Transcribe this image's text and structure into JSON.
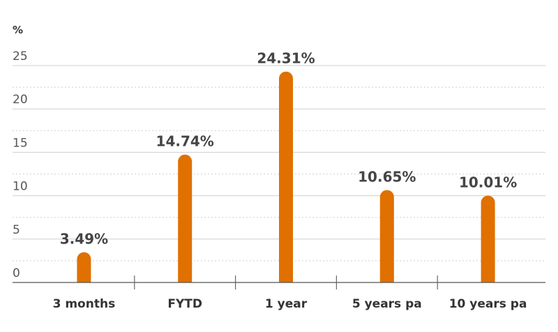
{
  "chart_data": {
    "type": "bar",
    "unit_label": "%",
    "categories": [
      "3 months",
      "FYTD",
      "1 year",
      "5 years pa",
      "10 years pa"
    ],
    "values": [
      3.49,
      14.74,
      24.31,
      10.65,
      10.01
    ],
    "value_labels": [
      "3.49%",
      "14.74%",
      "24.31%",
      "10.65%",
      "10.01%"
    ],
    "ylim": [
      0,
      25
    ],
    "yticks": [
      "0",
      "5",
      "10",
      "15",
      "20",
      "25"
    ],
    "grid": true,
    "bar_color": "#E07000"
  }
}
